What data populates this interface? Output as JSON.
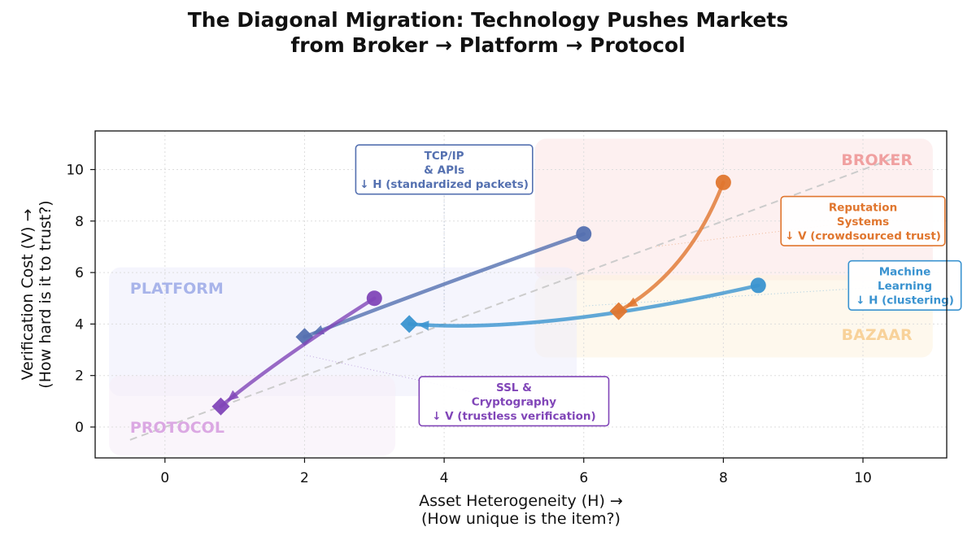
{
  "chart_data": {
    "type": "scatter",
    "title": [
      "The Diagonal Migration: Technology Pushes Markets",
      "from Broker → Platform → Protocol"
    ],
    "xlabel": [
      "Asset Heterogeneity (H) →",
      "(How unique is the item?)"
    ],
    "ylabel": [
      "Verification Cost (V) →",
      "(How hard is it to trust?)"
    ],
    "xlim": [
      -1,
      11.2
    ],
    "ylim": [
      -1.2,
      11.5
    ],
    "xticks": [
      0,
      2,
      4,
      6,
      8,
      10
    ],
    "yticks": [
      0,
      2,
      4,
      6,
      8,
      10
    ],
    "grid": true,
    "regions": [
      {
        "name": "BROKER",
        "x0": 5.3,
        "x1": 11.0,
        "y0": 5.7,
        "y1": 11.2,
        "fill": "#fbe3e3",
        "text_color": "#f0a0a0",
        "label_x": 10.2,
        "label_y": 10.4
      },
      {
        "name": "BAZAAR",
        "x0": 5.3,
        "x1": 11.0,
        "y0": 2.7,
        "y1": 5.9,
        "fill": "#fdf3df",
        "text_color": "#f8d29a",
        "label_x": 10.2,
        "label_y": 3.6
      },
      {
        "name": "PLATFORM",
        "x0": -0.8,
        "x1": 5.9,
        "y0": 1.2,
        "y1": 6.2,
        "fill": "#ececfb",
        "text_color": "#a8b4ea",
        "label_x": -0.5,
        "label_y": 5.4
      },
      {
        "name": "PROTOCOL",
        "x0": -0.8,
        "x1": 3.3,
        "y0": -1.1,
        "y1": 2.0,
        "fill": "#f5ecf7",
        "text_color": "#dba8e3",
        "label_x": -0.5,
        "label_y": 0.0
      }
    ],
    "diagonal": {
      "x": [
        -0.5,
        10.5
      ],
      "y": [
        -0.5,
        10.5
      ],
      "color": "#cccccc"
    },
    "series": [
      {
        "name": "TCP/IP & APIs",
        "color": "#5470b0",
        "start": [
          6,
          7.5
        ],
        "end": [
          2,
          3.5
        ],
        "ctrl": [
          3.6,
          5.2
        ],
        "annotation": {
          "lines": [
            "TCP/IP",
            "& APIs",
            "↓ H (standardized packets)"
          ],
          "x": 4.0,
          "y": 10.0,
          "anchor": [
            4.0,
            4.5
          ]
        }
      },
      {
        "name": "Machine Learning",
        "color": "#3a93d0",
        "start": [
          8.5,
          5.5
        ],
        "end": [
          3.5,
          4.0
        ],
        "ctrl": [
          5.4,
          3.6
        ],
        "annotation": {
          "lines": [
            "Machine",
            "Learning",
            "↓ H (clustering)"
          ],
          "x": 10.6,
          "y": 5.5,
          "anchor": [
            6.0,
            4.7
          ]
        }
      },
      {
        "name": "Reputation Systems",
        "color": "#e0762e",
        "start": [
          8.0,
          9.5
        ],
        "end": [
          6.5,
          4.5
        ],
        "ctrl": [
          7.5,
          6.0
        ],
        "annotation": {
          "lines": [
            "Reputation",
            "Systems",
            "↓ V (crowdsourced trust)"
          ],
          "x": 10.0,
          "y": 8.0,
          "anchor": [
            7.0,
            7.0
          ]
        }
      },
      {
        "name": "SSL & Cryptography",
        "color": "#8146b8",
        "start": [
          3.0,
          5.0
        ],
        "end": [
          0.8,
          0.8
        ],
        "ctrl": [
          1.6,
          2.6
        ],
        "annotation": {
          "lines": [
            "SSL &",
            "Cryptography",
            "↓ V (trustless verification)"
          ],
          "x": 5.0,
          "y": 1.0,
          "anchor": [
            2.0,
            2.8
          ]
        }
      }
    ]
  }
}
